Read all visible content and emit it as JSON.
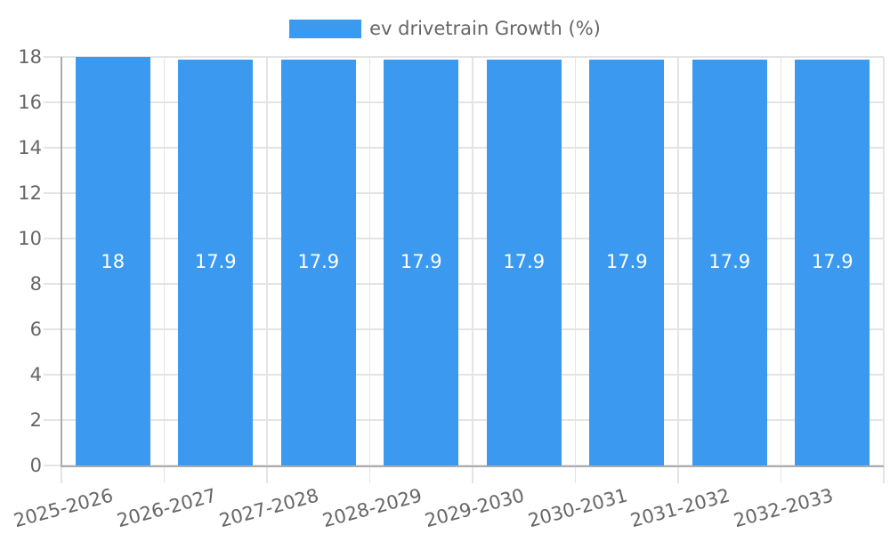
{
  "chart_data": {
    "type": "bar",
    "title": "",
    "categories": [
      "2025-2026",
      "2026-2027",
      "2027-2028",
      "2028-2029",
      "2029-2030",
      "2030-2031",
      "2031-2032",
      "2032-2033"
    ],
    "series": [
      {
        "name": "ev drivetrain Growth (%)",
        "values": [
          18,
          17.9,
          17.9,
          17.9,
          17.9,
          17.9,
          17.9,
          17.9
        ]
      }
    ],
    "bar_value_labels": [
      "18",
      "17.9",
      "17.9",
      "17.9",
      "17.9",
      "17.9",
      "17.9",
      "17.9"
    ],
    "xlabel": "",
    "ylabel": "",
    "ylim": [
      0,
      18
    ],
    "yticks": [
      0,
      2,
      4,
      6,
      8,
      10,
      12,
      14,
      16,
      18
    ],
    "legend_position": "top",
    "grid": true,
    "x_tick_rotation_deg": -15,
    "colors": {
      "bar": "#3B99F0",
      "grid": "#E4E4E4",
      "axis": "#ACACAC",
      "tick_label": "#666666",
      "legend_text": "#666666",
      "bar_value_label": "#FFFFFF"
    }
  }
}
